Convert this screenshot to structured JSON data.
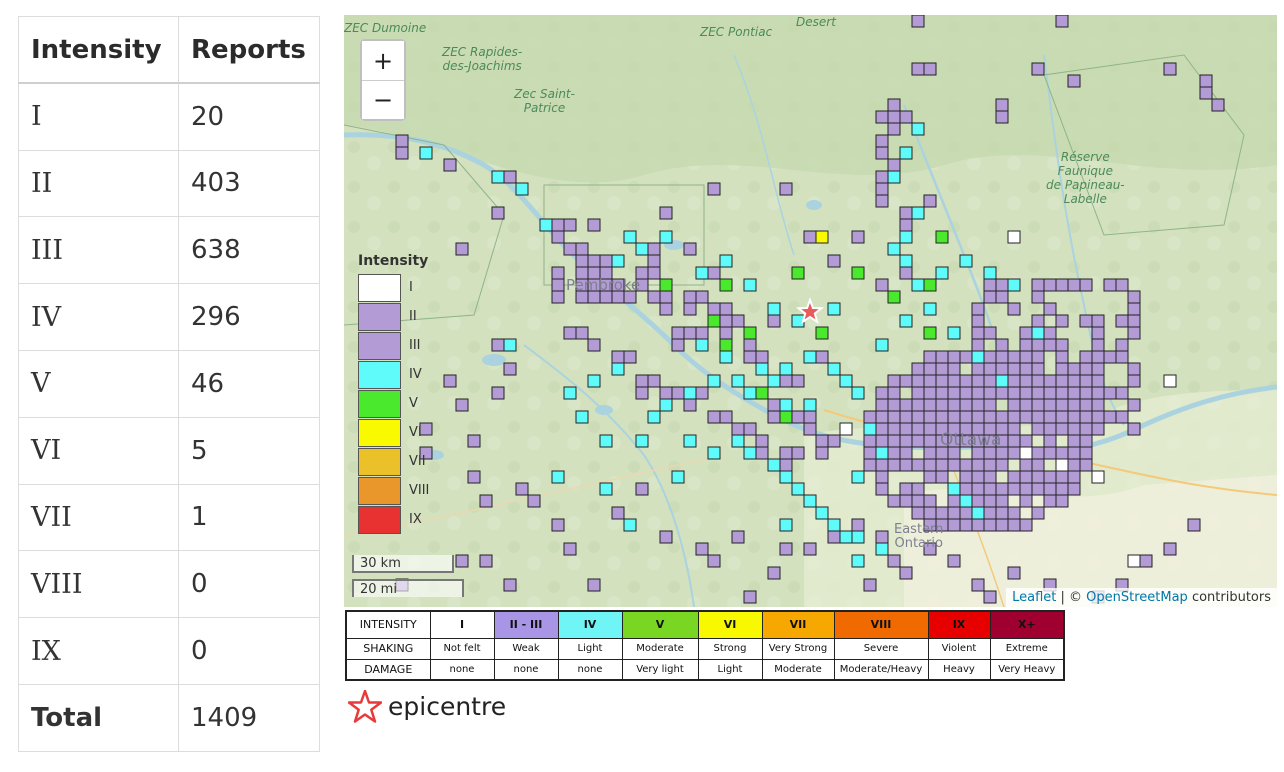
{
  "reports_table": {
    "headers": [
      "Intensity",
      "Reports"
    ],
    "rows": [
      {
        "intensity": "I",
        "reports": "20"
      },
      {
        "intensity": "II",
        "reports": "403"
      },
      {
        "intensity": "III",
        "reports": "638"
      },
      {
        "intensity": "IV",
        "reports": "296"
      },
      {
        "intensity": "V",
        "reports": "46"
      },
      {
        "intensity": "VI",
        "reports": "5"
      },
      {
        "intensity": "VII",
        "reports": "1"
      },
      {
        "intensity": "VIII",
        "reports": "0"
      },
      {
        "intensity": "IX",
        "reports": "0"
      }
    ],
    "total": {
      "label": "Total",
      "reports": "1409"
    }
  },
  "map": {
    "zoom_in": "+",
    "zoom_out": "−",
    "place_labels": {
      "zec_dumoine": "ZEC Dumoine",
      "desert": "Desert",
      "zec_pontiac": "ZEC Pontiac",
      "zec_rapides": "ZEC Rapides-\ndes-Joachims",
      "zec_saint_patrice": "Zec Saint-\nPatrice",
      "reserve": "Réserve\nFaunique\nde Papineau-\nLabelle",
      "pembroke": "Pembroke",
      "ottawa": "Ottawa",
      "eastern_ontario": "Eastern\nOntario"
    },
    "legend": {
      "title": "Intensity",
      "items": [
        {
          "label": "I",
          "color": "#ffffff"
        },
        {
          "label": "II",
          "color": "#b39bd6"
        },
        {
          "label": "III",
          "color": "#b39bd6"
        },
        {
          "label": "IV",
          "color": "#5ffafa"
        },
        {
          "label": "V",
          "color": "#4be92d"
        },
        {
          "label": "VI",
          "color": "#f9f900"
        },
        {
          "label": "VII",
          "color": "#ebc12a"
        },
        {
          "label": "VIII",
          "color": "#e9962a"
        },
        {
          "label": "IX",
          "color": "#e83232"
        }
      ]
    },
    "scale": {
      "km": "30 km",
      "mi": "20 mi"
    },
    "attribution": {
      "leaflet": "Leaflet",
      "separator": " | © ",
      "osm": "OpenStreetMap",
      "contributors": " contributors"
    },
    "colors": {
      "I": "#ffffff",
      "II": "#b39bd6",
      "IV": "#5ffafa",
      "V": "#4be92d",
      "VI": "#f9f900"
    }
  },
  "intensity_scale": {
    "row_headers": [
      "INTENSITY",
      "SHAKING",
      "DAMAGE"
    ],
    "columns": [
      {
        "intensity": "I",
        "shaking": "Not felt",
        "damage": "none",
        "color": "#ffffff"
      },
      {
        "intensity": "II - III",
        "shaking": "Weak",
        "damage": "none",
        "color": "#a995e6"
      },
      {
        "intensity": "IV",
        "shaking": "Light",
        "damage": "none",
        "color": "#6ff5f5"
      },
      {
        "intensity": "V",
        "shaking": "Moderate",
        "damage": "Very light",
        "color": "#79d622"
      },
      {
        "intensity": "VI",
        "shaking": "Strong",
        "damage": "Light",
        "color": "#f8f800"
      },
      {
        "intensity": "VII",
        "shaking": "Very Strong",
        "damage": "Moderate",
        "color": "#f7a800"
      },
      {
        "intensity": "VIII",
        "shaking": "Severe",
        "damage": "Moderate/Heavy",
        "color": "#f06a00"
      },
      {
        "intensity": "IX",
        "shaking": "Violent",
        "damage": "Heavy",
        "color": "#e60000"
      },
      {
        "intensity": "X+",
        "shaking": "Extreme",
        "damage": "Very Heavy",
        "color": "#a00030"
      }
    ]
  },
  "epicentre": {
    "label": "epicentre"
  }
}
